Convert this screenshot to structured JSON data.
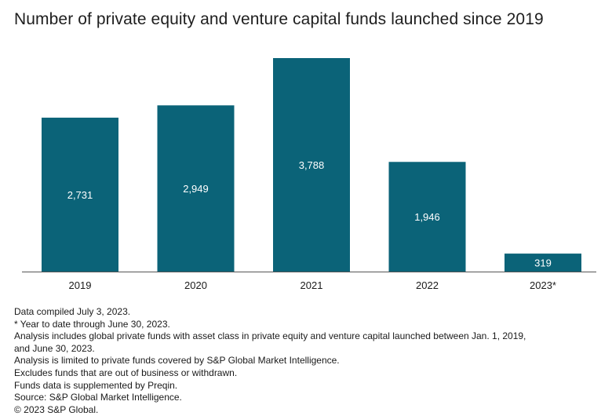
{
  "chart_data": {
    "type": "bar",
    "title": "Number of private equity and venture capital funds launched since 2019",
    "categories": [
      "2019",
      "2020",
      "2021",
      "2022",
      "2023*"
    ],
    "values": [
      2731,
      2949,
      3788,
      1946,
      319
    ],
    "value_labels": [
      "2,731",
      "2,949",
      "3,788",
      "1,946",
      "319"
    ],
    "xlabel": "",
    "ylabel": "",
    "ylim": [
      0,
      3788
    ],
    "grid": false,
    "colors": {
      "bar": "#0b6378",
      "label_inside": "#ffffff"
    }
  },
  "notes": [
    "Data compiled July 3, 2023.",
    "* Year to date through June 30, 2023.",
    "Analysis includes global private funds with asset class in private equity and venture capital launched between Jan. 1, 2019,",
    "and June 30, 2023.",
    "Analysis is limited to private funds covered by S&P Global Market Intelligence.",
    "Excludes funds that are out of business or withdrawn.",
    "Funds data is supplemented by Preqin.",
    "Source: S&P Global Market Intelligence.",
    "© 2023 S&P Global."
  ]
}
